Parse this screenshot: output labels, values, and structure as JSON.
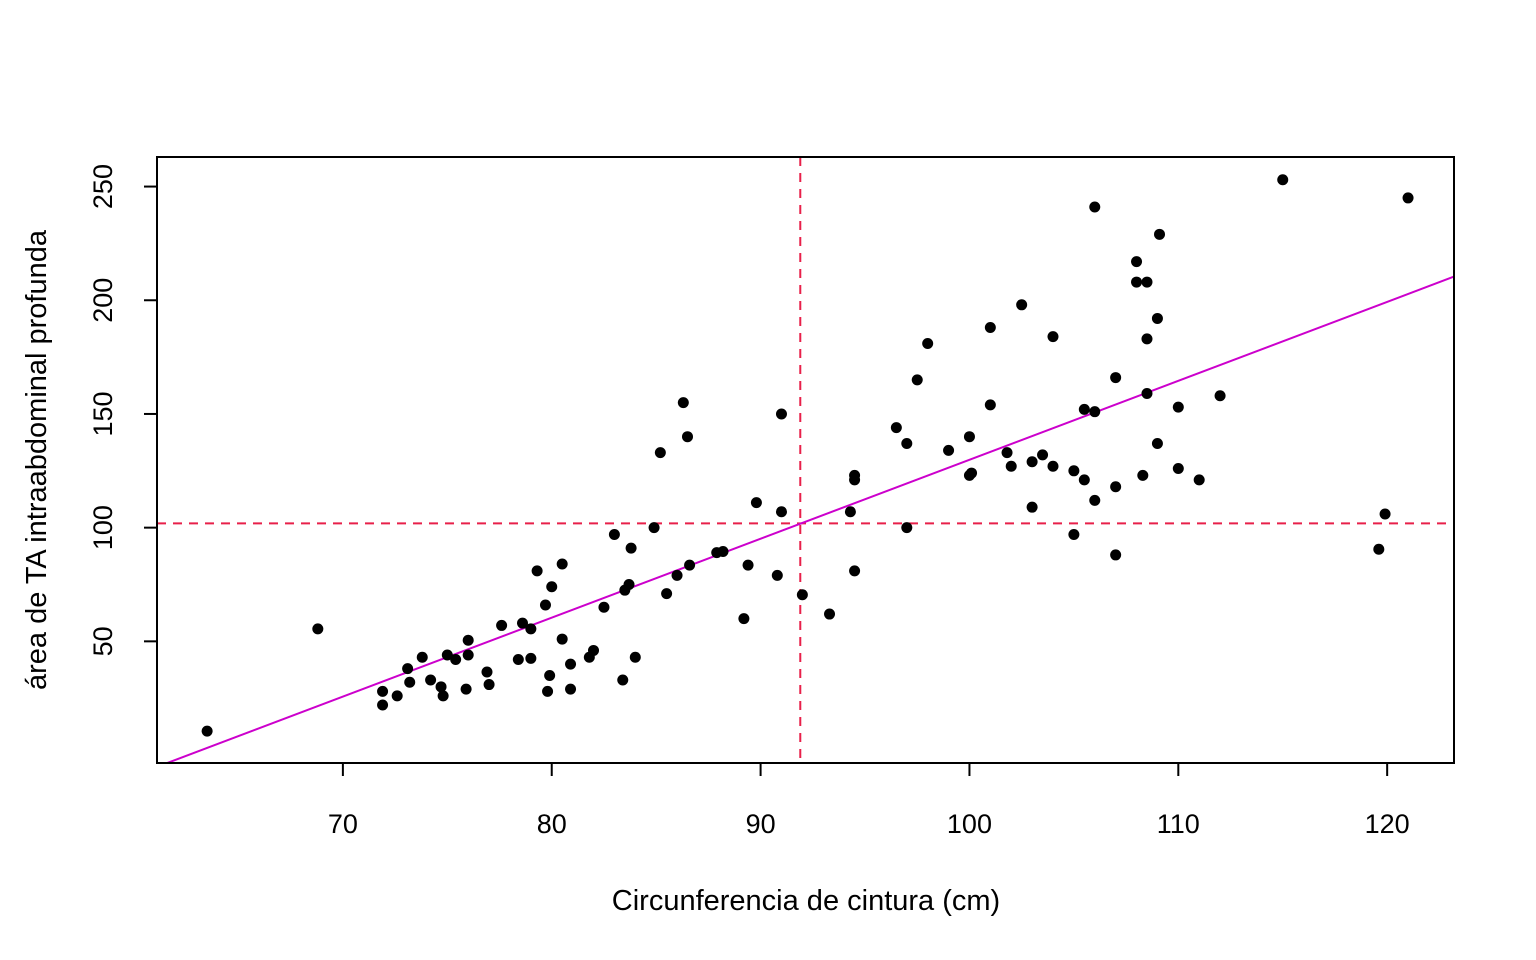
{
  "chart_data": {
    "type": "scatter",
    "title": "",
    "xlabel": "Circunferencia de cintura (cm)",
    "ylabel": "área de TA intraabdominal profunda",
    "xlim": [
      61.1,
      123.2
    ],
    "ylim": [
      -3.5,
      263
    ],
    "x_ticks": [
      70,
      80,
      90,
      100,
      110,
      120
    ],
    "y_ticks": [
      50,
      100,
      150,
      200,
      250
    ],
    "grid": false,
    "legend": "none",
    "colors": {
      "points": "#000000",
      "fit_line": "#cc00cc",
      "ref_lines": "#e8204a",
      "frame": "#000000"
    },
    "reference_lines": {
      "vertical_x": 91.9,
      "horizontal_y": 101.9,
      "style": "dashed"
    },
    "fit_line": {
      "x": [
        61.1,
        123.2
      ],
      "y": [
        -5.2,
        210.4
      ]
    },
    "series": [
      {
        "x": [
          63.5,
          68.8,
          71.9,
          71.9,
          72.6,
          73.1,
          73.2,
          73.8,
          74.2,
          74.7,
          74.8,
          75.0,
          75.4,
          75.9,
          76.0,
          76.0,
          76.9,
          77.0,
          77.6,
          78.4,
          78.6,
          79.0,
          79.0,
          79.3,
          79.7,
          79.8,
          79.9,
          80.0,
          80.5,
          80.5,
          80.9,
          80.9,
          81.8,
          82.0,
          82.5,
          83.0,
          83.4,
          83.5,
          83.7,
          83.8,
          84.0,
          84.9,
          85.2,
          85.5,
          86.0,
          86.3,
          86.5,
          86.6,
          87.9,
          88.2,
          89.2,
          89.4,
          89.8,
          90.8,
          91.0,
          91.0,
          92.0,
          93.3,
          94.3,
          94.5,
          94.5,
          94.5,
          96.5,
          97.0,
          97.0,
          97.5,
          98.0,
          99.0,
          100.0,
          100.0,
          100.1,
          101.0,
          101.0,
          101.8,
          102.0,
          102.5,
          103.0,
          103.0,
          103.5,
          104.0,
          104.0,
          105.0,
          105.0,
          105.5,
          105.5,
          106.0,
          106.0,
          106.0,
          107.0,
          107.0,
          107.0,
          108.0,
          108.0,
          108.3,
          108.5,
          108.5,
          108.5,
          109.0,
          109.0,
          109.1,
          110.0,
          110.0,
          111.0,
          112.0,
          115.0,
          119.6,
          119.9,
          121.0
        ],
        "y": [
          10.5,
          55.5,
          22.0,
          28.0,
          26.0,
          38.0,
          32.0,
          43.0,
          33.0,
          30.0,
          26.0,
          44.0,
          42.0,
          29.0,
          44.0,
          50.5,
          36.5,
          31.0,
          57.0,
          42.0,
          58.0,
          42.5,
          55.5,
          81.0,
          66.0,
          28.0,
          35.0,
          74.0,
          51.0,
          84.0,
          40.0,
          29.0,
          43.0,
          46.0,
          65.0,
          97.0,
          33.0,
          72.5,
          75.0,
          91.0,
          43.0,
          100.0,
          133.0,
          71.0,
          79.0,
          155.0,
          140.0,
          83.5,
          89.0,
          89.5,
          60.0,
          83.5,
          111.0,
          79.0,
          150.0,
          107.0,
          70.5,
          62.0,
          107.0,
          81.0,
          121.0,
          123.0,
          144.0,
          137.0,
          100.0,
          165.0,
          181.0,
          134.0,
          140.0,
          123.0,
          124.0,
          188.0,
          154.0,
          133.0,
          127.0,
          198.0,
          129.0,
          109.0,
          132.0,
          184.0,
          127.0,
          125.0,
          97.0,
          152.0,
          121.0,
          241.0,
          151.0,
          112.0,
          166.0,
          118.0,
          88.0,
          208.0,
          217.0,
          123.0,
          183.0,
          159.0,
          208.0,
          192.0,
          137.0,
          229.0,
          153.0,
          126.0,
          121.0,
          158.0,
          253.0,
          90.5,
          106.0,
          245.0
        ]
      }
    ]
  }
}
